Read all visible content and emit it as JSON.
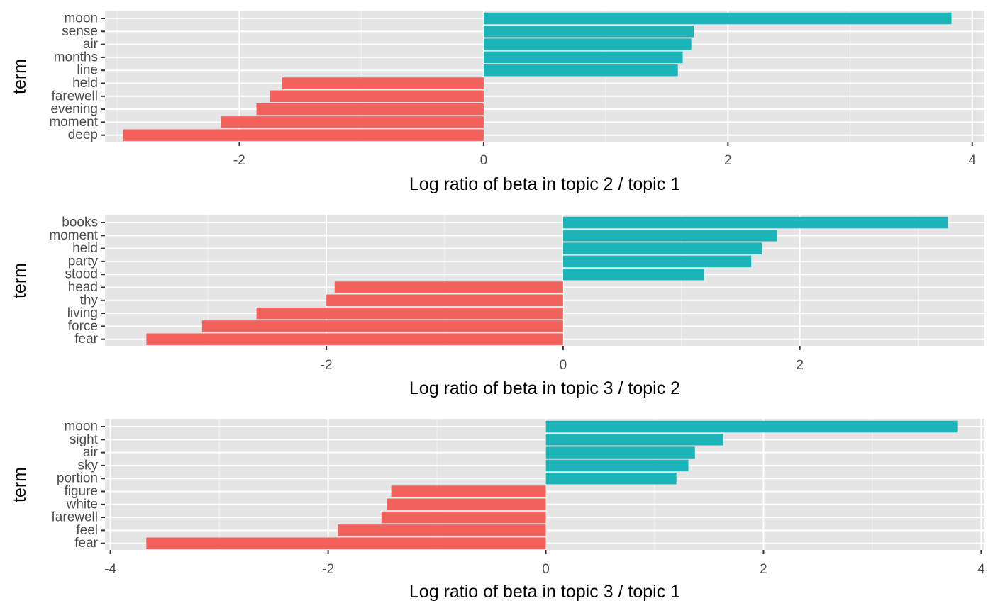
{
  "chart_data": [
    {
      "type": "bar",
      "orientation": "horizontal",
      "title": "",
      "xlabel": "Log ratio of beta in topic 2 / topic 1",
      "ylabel": "term",
      "xlim": [
        -3.1,
        4.1
      ],
      "xticks": [
        -2,
        0,
        2,
        4
      ],
      "xtick_labels": [
        "-2",
        "0",
        "2",
        "4"
      ],
      "grid": true,
      "legend": "none",
      "categories": [
        "moon",
        "sense",
        "air",
        "months",
        "line",
        "held",
        "farewell",
        "evening",
        "moment",
        "deep"
      ],
      "values": [
        3.83,
        1.72,
        1.7,
        1.63,
        1.59,
        -1.65,
        -1.75,
        -1.86,
        -2.15,
        -2.95
      ]
    },
    {
      "type": "bar",
      "orientation": "horizontal",
      "title": "",
      "xlabel": "Log ratio of beta in topic 3 / topic 2",
      "ylabel": "term",
      "xlim": [
        -3.87,
        3.56
      ],
      "xticks": [
        -2,
        0,
        2
      ],
      "xtick_labels": [
        "-2",
        "0",
        "2"
      ],
      "grid": true,
      "legend": "none",
      "categories": [
        "books",
        "moment",
        "held",
        "party",
        "stood",
        "head",
        "thy",
        "living",
        "force",
        "fear"
      ],
      "values": [
        3.25,
        1.81,
        1.68,
        1.59,
        1.19,
        -1.93,
        -2.0,
        -2.59,
        -3.05,
        -3.52
      ]
    },
    {
      "type": "bar",
      "orientation": "horizontal",
      "title": "",
      "xlabel": "Log ratio of beta in topic 3 / topic 1",
      "ylabel": "term",
      "xlim": [
        -4.05,
        4.03
      ],
      "xticks": [
        -4,
        -2,
        0,
        2,
        4
      ],
      "xtick_labels": [
        "-4",
        "-2",
        "0",
        "2",
        "4"
      ],
      "grid": true,
      "legend": "none",
      "categories": [
        "moon",
        "sight",
        "air",
        "sky",
        "portion",
        "figure",
        "white",
        "farewell",
        "feel",
        "fear"
      ],
      "values": [
        3.78,
        1.63,
        1.37,
        1.31,
        1.2,
        -1.42,
        -1.46,
        -1.51,
        -1.91,
        -3.67
      ]
    }
  ],
  "colors": {
    "positive": "#1bb5b9",
    "negative": "#f3615c",
    "panel_background": "#e5e5e5",
    "gridline": "#ffffff",
    "tick_text": "#4d4d4d",
    "axis_title": "#000000"
  }
}
